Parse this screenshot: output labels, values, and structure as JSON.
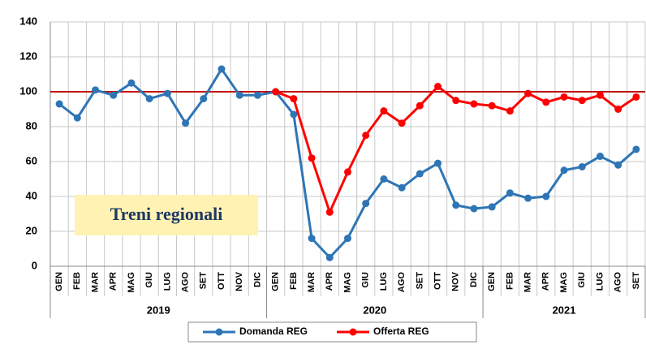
{
  "chart_data": {
    "type": "line",
    "categories": [
      "GEN",
      "FEB",
      "MAR",
      "APR",
      "MAG",
      "GIU",
      "LUG",
      "AGO",
      "SET",
      "OTT",
      "NOV",
      "DIC",
      "GEN",
      "FEB",
      "MAR",
      "APR",
      "MAG",
      "GIU",
      "LUG",
      "AGO",
      "SET",
      "OTT",
      "NOV",
      "DIC",
      "GEN",
      "FEB",
      "MAR",
      "APR",
      "MAG",
      "GIU",
      "LUG",
      "AGO",
      "SET"
    ],
    "year_groups": [
      {
        "label": "2019",
        "count": 12
      },
      {
        "label": "2020",
        "count": 12
      },
      {
        "label": "2021",
        "count": 9
      }
    ],
    "series": [
      {
        "name": "Domanda REG",
        "color": "#2e75b6",
        "values": [
          93,
          85,
          101,
          98,
          105,
          96,
          99,
          82,
          96,
          113,
          98,
          98,
          100,
          87,
          16,
          5,
          16,
          36,
          50,
          45,
          53,
          59,
          35,
          33,
          34,
          42,
          39,
          40,
          55,
          57,
          63,
          58,
          67
        ]
      },
      {
        "name": "Offerta REG",
        "color": "#ff0000",
        "values": [
          null,
          null,
          null,
          null,
          null,
          null,
          null,
          null,
          null,
          null,
          null,
          null,
          100,
          96,
          62,
          31,
          54,
          75,
          89,
          82,
          92,
          103,
          95,
          93,
          92,
          89,
          99,
          94,
          97,
          95,
          98,
          90,
          97
        ]
      }
    ],
    "reference_line": {
      "value": 100,
      "color": "#c00000"
    },
    "annotation": "Treni regionali",
    "ylim": [
      0,
      140
    ],
    "yticks": [
      0,
      20,
      40,
      60,
      80,
      100,
      120,
      140
    ],
    "grid": true,
    "legend": "bottom"
  }
}
